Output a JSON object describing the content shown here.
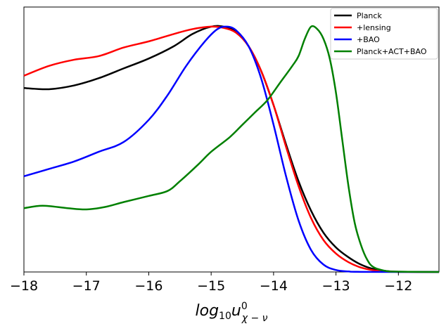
{
  "chart_data": {
    "type": "line",
    "title": "",
    "xlabel": "log10 u⁰χ−ν",
    "xlabel_parts": {
      "base": "log",
      "base_sub": "10",
      "var": "u",
      "sup": "0",
      "sub": "χ − ν"
    },
    "ylabel": "",
    "xlim": [
      -18,
      -11.35
    ],
    "ylim": [
      0,
      1.08
    ],
    "xticks": [
      -18,
      -17,
      -16,
      -15,
      -14,
      -13,
      -12
    ],
    "xtick_labels": [
      "−18",
      "−17",
      "−16",
      "−15",
      "−14",
      "−13",
      "−12"
    ],
    "yticks_visible": false,
    "legend_position": "top-right",
    "series": [
      {
        "name": "Planck",
        "color": "#000000",
        "points": [
          [
            -18,
            0.75
          ],
          [
            -17.6,
            0.745
          ],
          [
            -17.2,
            0.76
          ],
          [
            -16.8,
            0.79
          ],
          [
            -16.4,
            0.83
          ],
          [
            -16,
            0.87
          ],
          [
            -15.6,
            0.92
          ],
          [
            -15.3,
            0.97
          ],
          [
            -15,
            1.0
          ],
          [
            -14.8,
            1.0
          ],
          [
            -14.6,
            0.98
          ],
          [
            -14.4,
            0.92
          ],
          [
            -14.2,
            0.82
          ],
          [
            -14.0,
            0.68
          ],
          [
            -13.8,
            0.52
          ],
          [
            -13.6,
            0.37
          ],
          [
            -13.4,
            0.25
          ],
          [
            -13.2,
            0.16
          ],
          [
            -13.0,
            0.1
          ],
          [
            -12.8,
            0.06
          ],
          [
            -12.6,
            0.03
          ],
          [
            -12.4,
            0.012
          ],
          [
            -12.2,
            0.004
          ],
          [
            -12,
            0.001
          ],
          [
            -11.35,
            0
          ]
        ]
      },
      {
        "name": "+lensing",
        "color": "#ff0000",
        "points": [
          [
            -18,
            0.8
          ],
          [
            -17.6,
            0.84
          ],
          [
            -17.2,
            0.865
          ],
          [
            -16.8,
            0.88
          ],
          [
            -16.4,
            0.915
          ],
          [
            -16,
            0.94
          ],
          [
            -15.6,
            0.97
          ],
          [
            -15.3,
            0.99
          ],
          [
            -15.0,
            1.0
          ],
          [
            -14.8,
            0.995
          ],
          [
            -14.6,
            0.975
          ],
          [
            -14.4,
            0.92
          ],
          [
            -14.2,
            0.82
          ],
          [
            -14.0,
            0.68
          ],
          [
            -13.8,
            0.51
          ],
          [
            -13.6,
            0.35
          ],
          [
            -13.4,
            0.22
          ],
          [
            -13.2,
            0.13
          ],
          [
            -13.0,
            0.075
          ],
          [
            -12.8,
            0.04
          ],
          [
            -12.6,
            0.018
          ],
          [
            -12.4,
            0.007
          ],
          [
            -12.2,
            0.002
          ],
          [
            -12,
            0.0005
          ],
          [
            -11.35,
            0
          ]
        ]
      },
      {
        "name": "+BAO",
        "color": "#0000ff",
        "points": [
          [
            -18,
            0.39
          ],
          [
            -17.6,
            0.42
          ],
          [
            -17.2,
            0.45
          ],
          [
            -16.8,
            0.49
          ],
          [
            -16.4,
            0.53
          ],
          [
            -16.0,
            0.62
          ],
          [
            -15.7,
            0.72
          ],
          [
            -15.4,
            0.84
          ],
          [
            -15.1,
            0.94
          ],
          [
            -14.9,
            0.99
          ],
          [
            -14.75,
            1.0
          ],
          [
            -14.6,
            0.985
          ],
          [
            -14.4,
            0.92
          ],
          [
            -14.2,
            0.79
          ],
          [
            -14.0,
            0.6
          ],
          [
            -13.8,
            0.39
          ],
          [
            -13.6,
            0.21
          ],
          [
            -13.4,
            0.09
          ],
          [
            -13.2,
            0.03
          ],
          [
            -13.0,
            0.008
          ],
          [
            -12.8,
            0.002
          ],
          [
            -12.6,
            0.0005
          ],
          [
            -11.35,
            0
          ]
        ]
      },
      {
        "name": "Planck+ACT+BAO",
        "color": "#008000",
        "points": [
          [
            -18,
            0.26
          ],
          [
            -17.7,
            0.27
          ],
          [
            -17.3,
            0.26
          ],
          [
            -17.0,
            0.255
          ],
          [
            -16.7,
            0.265
          ],
          [
            -16.4,
            0.285
          ],
          [
            -16.0,
            0.31
          ],
          [
            -15.7,
            0.33
          ],
          [
            -15.5,
            0.37
          ],
          [
            -15.2,
            0.44
          ],
          [
            -15.0,
            0.49
          ],
          [
            -14.7,
            0.55
          ],
          [
            -14.5,
            0.6
          ],
          [
            -14.3,
            0.65
          ],
          [
            -14.1,
            0.7
          ],
          [
            -13.9,
            0.77
          ],
          [
            -13.7,
            0.84
          ],
          [
            -13.6,
            0.88
          ],
          [
            -13.5,
            0.95
          ],
          [
            -13.4,
            1.0
          ],
          [
            -13.3,
            0.99
          ],
          [
            -13.2,
            0.95
          ],
          [
            -13.1,
            0.87
          ],
          [
            -13.0,
            0.73
          ],
          [
            -12.9,
            0.54
          ],
          [
            -12.8,
            0.35
          ],
          [
            -12.7,
            0.2
          ],
          [
            -12.6,
            0.11
          ],
          [
            -12.5,
            0.05
          ],
          [
            -12.4,
            0.02
          ],
          [
            -12.2,
            0.004
          ],
          [
            -12.0,
            0.001
          ],
          [
            -11.35,
            0
          ]
        ]
      }
    ]
  }
}
